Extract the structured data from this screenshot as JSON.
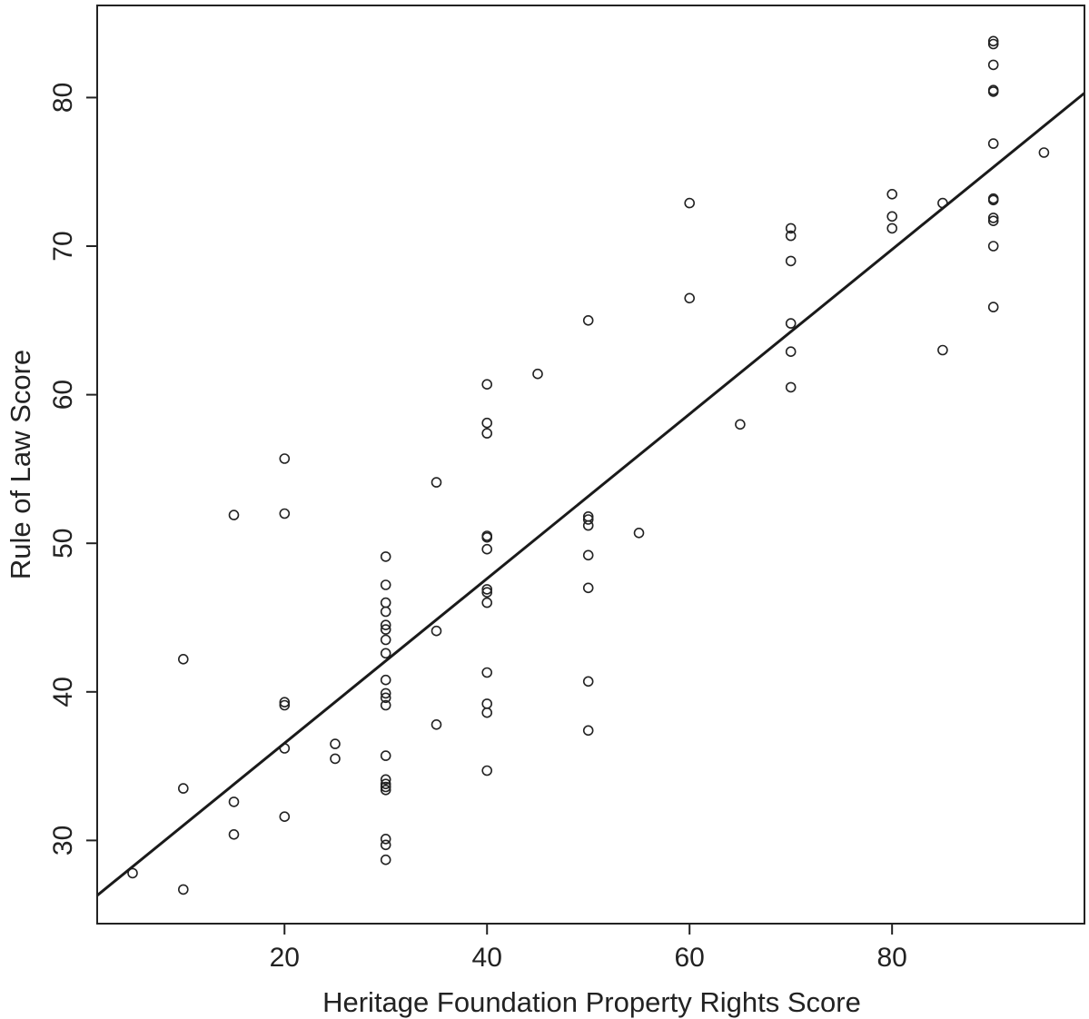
{
  "chart_data": {
    "type": "scatter",
    "title": "",
    "xlabel": "Heritage Foundation Property Rights Score",
    "ylabel": "Rule of Law Score",
    "xlim": [
      1.5,
      99
    ],
    "ylim": [
      24.4,
      86.2
    ],
    "xticks": [
      20,
      40,
      60,
      80
    ],
    "xtick_labels": [
      "20",
      "40",
      "60",
      "80"
    ],
    "yticks": [
      30,
      40,
      50,
      60,
      70,
      80
    ],
    "ytick_labels": [
      "30",
      "40",
      "50",
      "60",
      "70",
      "80"
    ],
    "grid": false,
    "legend": "none",
    "fit_line": {
      "x": [
        1.5,
        99
      ],
      "y": [
        26.3,
        80.3
      ]
    },
    "points": [
      [
        5,
        27.8
      ],
      [
        10,
        26.7
      ],
      [
        10,
        33.5
      ],
      [
        10,
        42.2
      ],
      [
        15,
        30.4
      ],
      [
        15,
        32.6
      ],
      [
        15,
        51.9
      ],
      [
        20,
        31.6
      ],
      [
        20,
        36.2
      ],
      [
        20,
        39.1
      ],
      [
        20,
        39.3
      ],
      [
        20,
        52.0
      ],
      [
        20,
        55.7
      ],
      [
        25,
        35.5
      ],
      [
        25,
        36.5
      ],
      [
        30,
        28.7
      ],
      [
        30,
        29.7
      ],
      [
        30,
        30.1
      ],
      [
        30,
        33.4
      ],
      [
        30,
        33.6
      ],
      [
        30,
        33.8
      ],
      [
        30,
        34.1
      ],
      [
        30,
        35.7
      ],
      [
        30,
        39.1
      ],
      [
        30,
        39.6
      ],
      [
        30,
        39.9
      ],
      [
        30,
        40.8
      ],
      [
        30,
        42.6
      ],
      [
        30,
        43.5
      ],
      [
        30,
        44.2
      ],
      [
        30,
        44.5
      ],
      [
        30,
        45.4
      ],
      [
        30,
        46.0
      ],
      [
        30,
        47.2
      ],
      [
        30,
        49.1
      ],
      [
        35,
        37.8
      ],
      [
        35,
        44.1
      ],
      [
        35,
        54.1
      ],
      [
        40,
        34.7
      ],
      [
        40,
        38.6
      ],
      [
        40,
        39.2
      ],
      [
        40,
        41.3
      ],
      [
        40,
        46.0
      ],
      [
        40,
        46.7
      ],
      [
        40,
        46.9
      ],
      [
        40,
        49.6
      ],
      [
        40,
        50.4
      ],
      [
        40,
        50.5
      ],
      [
        40,
        57.4
      ],
      [
        40,
        58.1
      ],
      [
        40,
        60.7
      ],
      [
        45,
        61.4
      ],
      [
        50,
        37.4
      ],
      [
        50,
        40.7
      ],
      [
        50,
        47.0
      ],
      [
        50,
        49.2
      ],
      [
        50,
        51.2
      ],
      [
        50,
        51.6
      ],
      [
        50,
        51.8
      ],
      [
        50,
        65.0
      ],
      [
        55,
        50.7
      ],
      [
        60,
        66.5
      ],
      [
        60,
        72.9
      ],
      [
        65,
        58.0
      ],
      [
        70,
        60.5
      ],
      [
        70,
        62.9
      ],
      [
        70,
        64.8
      ],
      [
        70,
        69.0
      ],
      [
        70,
        70.7
      ],
      [
        70,
        71.2
      ],
      [
        80,
        71.2
      ],
      [
        80,
        72.0
      ],
      [
        80,
        73.5
      ],
      [
        85,
        63.0
      ],
      [
        85,
        72.9
      ],
      [
        90,
        65.9
      ],
      [
        90,
        70.0
      ],
      [
        90,
        71.7
      ],
      [
        90,
        71.9
      ],
      [
        90,
        73.1
      ],
      [
        90,
        73.2
      ],
      [
        90,
        76.9
      ],
      [
        90,
        80.4
      ],
      [
        90,
        80.5
      ],
      [
        90,
        82.2
      ],
      [
        90,
        83.6
      ],
      [
        90,
        83.8
      ],
      [
        95,
        76.3
      ]
    ]
  }
}
